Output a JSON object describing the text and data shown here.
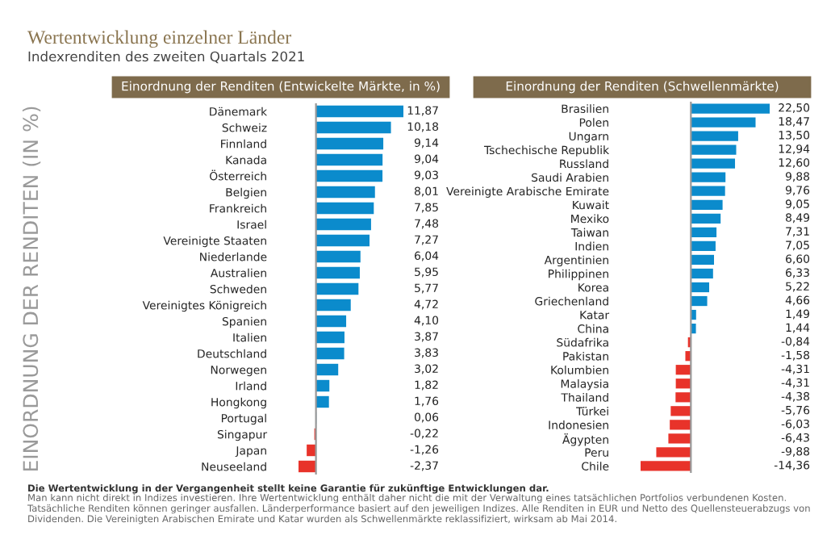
{
  "chart_data": [
    {
      "type": "other",
      "title": "Wertentwicklung einzelner Länder",
      "subtitle": "Indexrenditen des zweiten Quartals 2021",
      "annotations": [
        "Die Wertentwicklung in der Vergangenheit stellt keine Garantie für zukünftige Entwicklungen dar.",
        "Man kann nicht direkt in Indizes investieren. Ihre Wertentwicklung enthält daher nicht die mit der Verwaltung eines tatsächlichen Portfolios verbundenen Kosten. Tatsächliche Renditen können geringer ausfallen. Länderperformance basiert auf den jeweiligen Indizes. Alle Renditen in EUR und Netto des Quellensteuerabzugs von Dividenden. Die Vereinigten Arabischen Emirate und Katar wurden als Schwellenmärkte reklassifiziert, wirksam ab Mai 2014."
      ]
    },
    {
      "type": "bar",
      "orientation": "horizontal",
      "title": "Einordnung der Renditen (Entwickelte Märkte, in %)",
      "ylabel": "EINORDNUNG DER RENDITEN (IN %)",
      "categories": [
        "Dänemark",
        "Schweiz",
        "Finnland",
        "Kanada",
        "Österreich",
        "Belgien",
        "Frankreich",
        "Israel",
        "Vereinigte Staaten",
        "Niederlande",
        "Australien",
        "Schweden",
        "Vereinigtes Königreich",
        "Spanien",
        "Italien",
        "Deutschland",
        "Norwegen",
        "Irland",
        "Hongkong",
        "Portugal",
        "Singapur",
        "Japan",
        "Neuseeland"
      ],
      "values": [
        11.87,
        10.18,
        9.14,
        9.04,
        9.03,
        8.01,
        7.85,
        7.48,
        7.27,
        6.04,
        5.95,
        5.77,
        4.72,
        4.1,
        3.87,
        3.83,
        3.02,
        1.82,
        1.76,
        0.06,
        -0.22,
        -1.26,
        -2.37
      ],
      "value_labels": [
        "11,87",
        "10,18",
        "9,14",
        "9,04",
        "9,03",
        "8,01",
        "7,85",
        "7,48",
        "7,27",
        "6,04",
        "5,95",
        "5,77",
        "4,72",
        "4,10",
        "3,87",
        "3,83",
        "3,02",
        "1,82",
        "1,76",
        "0,06",
        "-0,22",
        "-1,26",
        "-2,37"
      ],
      "colors": [
        "#0b8bcc",
        "#0b8bcc",
        "#0b8bcc",
        "#0b8bcc",
        "#0b8bcc",
        "#0b8bcc",
        "#0b8bcc",
        "#0b8bcc",
        "#0b8bcc",
        "#0b8bcc",
        "#0b8bcc",
        "#0b8bcc",
        "#0b8bcc",
        "#0b8bcc",
        "#0b8bcc",
        "#0b8bcc",
        "#0b8bcc",
        "#0b8bcc",
        "#0b8bcc",
        "#0b8bcc",
        "#e8332a",
        "#e8332a",
        "#e8332a"
      ]
    },
    {
      "type": "bar",
      "orientation": "horizontal",
      "title": "Einordnung der Renditen (Schwellenmärkte)",
      "categories": [
        "Brasilien",
        "Polen",
        "Ungarn",
        "Tschechische Republik",
        "Russland",
        "Saudi Arabien",
        "Vereinigte Arabische Emirate",
        "Kuwait",
        "Mexiko",
        "Taiwan",
        "Indien",
        "Argentinien",
        "Philippinen",
        "Korea",
        "Griechenland",
        "Katar",
        "China",
        "Südafrika",
        "Pakistan",
        "Kolumbien",
        "Malaysia",
        "Thailand",
        "Türkei",
        "Indonesien",
        "Ägypten",
        "Peru",
        "Chile"
      ],
      "values": [
        22.5,
        18.47,
        13.5,
        12.94,
        12.6,
        9.88,
        9.76,
        9.05,
        8.49,
        7.31,
        7.05,
        6.6,
        6.33,
        5.22,
        4.66,
        1.49,
        1.44,
        -0.84,
        -1.58,
        -4.31,
        -4.31,
        -4.38,
        -5.76,
        -6.03,
        -6.43,
        -9.88,
        -14.36
      ],
      "value_labels": [
        "22,50",
        "18,47",
        "13,50",
        "12,94",
        "12,60",
        "9,88",
        "9,76",
        "9,05",
        "8,49",
        "7,31",
        "7,05",
        "6,60",
        "6,33",
        "5,22",
        "4,66",
        "1,49",
        "1,44",
        "-0,84",
        "-1,58",
        "-4,31",
        "-4,31",
        "-4,38",
        "-5,76",
        "-6,03",
        "-6,43",
        "-9,88",
        "-14,36"
      ],
      "colors": [
        "#0b8bcc",
        "#0b8bcc",
        "#0b8bcc",
        "#0b8bcc",
        "#0b8bcc",
        "#0b8bcc",
        "#0b8bcc",
        "#0b8bcc",
        "#0b8bcc",
        "#0b8bcc",
        "#0b8bcc",
        "#0b8bcc",
        "#0b8bcc",
        "#0b8bcc",
        "#0b8bcc",
        "#0b8bcc",
        "#0b8bcc",
        "#e8332a",
        "#e8332a",
        "#e8332a",
        "#e8332a",
        "#e8332a",
        "#e8332a",
        "#e8332a",
        "#e8332a",
        "#e8332a",
        "#e8332a"
      ]
    }
  ]
}
